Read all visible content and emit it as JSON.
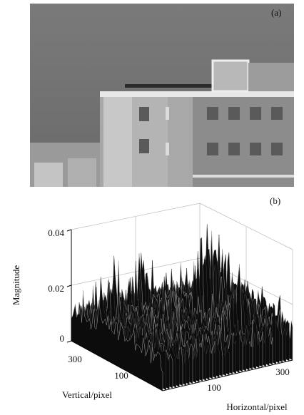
{
  "panels": [
    {
      "label": "(a)"
    },
    {
      "label": "(b)",
      "z_axis": {
        "title": "Magnitude",
        "ticks": [
          "0",
          "0.02",
          "0.04"
        ]
      },
      "y_axis": {
        "title": "Vertical/pixel",
        "ticks": [
          "300",
          "100"
        ]
      },
      "x_axis": {
        "title": "Horizontal/pixel",
        "ticks": [
          "100",
          "300"
        ]
      }
    }
  ]
}
